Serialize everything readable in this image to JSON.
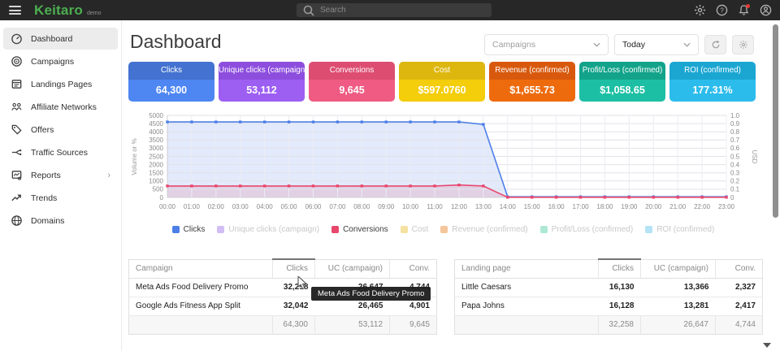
{
  "topbar": {
    "brand": "Keitaro",
    "brand_suffix": "demo",
    "search_placeholder": "Search"
  },
  "sidebar": {
    "items": [
      {
        "label": "Dashboard",
        "icon": "dashboard-icon",
        "active": true,
        "has_chevron": false
      },
      {
        "label": "Campaigns",
        "icon": "campaigns-icon",
        "active": false,
        "has_chevron": false
      },
      {
        "label": "Landings Pages",
        "icon": "landings-icon",
        "active": false,
        "has_chevron": false
      },
      {
        "label": "Affiliate Networks",
        "icon": "affiliate-networks-icon",
        "active": false,
        "has_chevron": false
      },
      {
        "label": "Offers",
        "icon": "offers-icon",
        "active": false,
        "has_chevron": false
      },
      {
        "label": "Traffic Sources",
        "icon": "traffic-sources-icon",
        "active": false,
        "has_chevron": false
      },
      {
        "label": "Reports",
        "icon": "reports-icon",
        "active": false,
        "has_chevron": true
      },
      {
        "label": "Trends",
        "icon": "trends-icon",
        "active": false,
        "has_chevron": false
      },
      {
        "label": "Domains",
        "icon": "domains-icon",
        "active": false,
        "has_chevron": false
      }
    ]
  },
  "header": {
    "title": "Dashboard",
    "campaign_filter_label": "Campaigns",
    "date_filter_label": "Today"
  },
  "metric_cards": [
    {
      "label": "Clicks",
      "value": "64,300",
      "header_color": "#4372d0",
      "body_color": "#4e86f2"
    },
    {
      "label": "Unique clicks (campaign)",
      "value": "53,112",
      "header_color": "#8d4ede",
      "body_color": "#9d5ef2"
    },
    {
      "label": "Conversions",
      "value": "9,645",
      "header_color": "#dd4d72",
      "body_color": "#ef5b82"
    },
    {
      "label": "Cost",
      "value": "$597.0760",
      "header_color": "#ddb70e",
      "body_color": "#f4cd0b"
    },
    {
      "label": "Revenue (confirmed)",
      "value": "$1,655.73",
      "header_color": "#d8590d",
      "body_color": "#ee6b0d"
    },
    {
      "label": "Profit/Loss (confirmed)",
      "value": "$1,058.65",
      "header_color": "#12a38a",
      "body_color": "#1dbfa4"
    },
    {
      "label": "ROI (confirmed)",
      "value": "177.31%",
      "header_color": "#1ba6d2",
      "body_color": "#2cbcec"
    }
  ],
  "chart_data": {
    "type": "line",
    "x": [
      "00:00",
      "01:00",
      "02:00",
      "03:00",
      "04:00",
      "05:00",
      "06:00",
      "07:00",
      "08:00",
      "09:00",
      "10:00",
      "11:00",
      "12:00",
      "13:00",
      "14:00",
      "15:00",
      "16:00",
      "17:00",
      "18:00",
      "19:00",
      "20:00",
      "21:00",
      "22:00",
      "23:00"
    ],
    "series": [
      {
        "name": "Clicks",
        "visible": true,
        "color": "#4d7fe8",
        "fill": "rgba(93,140,235,0.18)",
        "values": [
          4600,
          4600,
          4600,
          4600,
          4600,
          4600,
          4600,
          4600,
          4600,
          4600,
          4600,
          4600,
          4600,
          4450,
          40,
          40,
          40,
          40,
          40,
          40,
          40,
          40,
          40,
          40
        ]
      },
      {
        "name": "Unique clicks (campaign)",
        "visible": false,
        "color": "#d2bef5",
        "values": []
      },
      {
        "name": "Conversions",
        "visible": true,
        "color": "#e8486e",
        "fill": "rgba(232,72,110,0.16)",
        "values": [
          700,
          700,
          700,
          700,
          700,
          700,
          700,
          700,
          700,
          700,
          700,
          700,
          755,
          700,
          8,
          8,
          8,
          8,
          8,
          8,
          8,
          8,
          8,
          8
        ]
      },
      {
        "name": "Cost",
        "visible": false,
        "color": "#f5e2a0",
        "values": []
      },
      {
        "name": "Revenue (confirmed)",
        "visible": false,
        "color": "#f5c59c",
        "values": []
      },
      {
        "name": "Profit/Loss (confirmed)",
        "visible": false,
        "color": "#aee8d5",
        "values": []
      },
      {
        "name": "ROI (confirmed)",
        "visible": false,
        "color": "#b5e3f5",
        "values": []
      }
    ],
    "ylabel_left": "Volume or %",
    "ylabel_right": "USD",
    "ylim_left": [
      0,
      5000
    ],
    "ytick_step_left": 500,
    "ylim_right": [
      0,
      1.0
    ],
    "ytick_step_right": 0.1,
    "grid": true,
    "legend_position": "bottom"
  },
  "tables": [
    {
      "columns": [
        "Campaign",
        "Clicks",
        "UC (campaign)",
        "Conv."
      ],
      "sorted_column": "Clicks",
      "rows": [
        [
          "Meta Ads Food Delivery Promo",
          "32,258",
          "26,647",
          "4,744"
        ],
        [
          "Google Ads Fitness App Split",
          "32,042",
          "26,465",
          "4,901"
        ]
      ],
      "totals": [
        "",
        "64,300",
        "53,112",
        "9,645"
      ]
    },
    {
      "columns": [
        "Landing page",
        "Clicks",
        "UC (campaign)",
        "Conv."
      ],
      "sorted_column": "Clicks",
      "rows": [
        [
          "Little Caesars",
          "16,130",
          "13,366",
          "2,327"
        ],
        [
          "Papa Johns",
          "16,128",
          "13,281",
          "2,417"
        ]
      ],
      "totals": [
        "",
        "32,258",
        "26,647",
        "4,744"
      ]
    }
  ],
  "tooltip": {
    "text": "Meta Ads Food Delivery Promo"
  }
}
